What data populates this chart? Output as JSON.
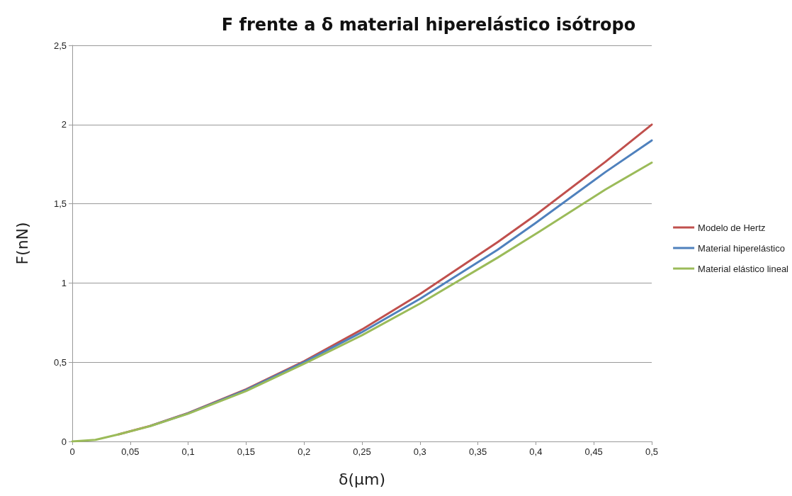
{
  "chart_data": {
    "type": "line",
    "title": "F frente a δ material hiperelástico isótropo",
    "xlabel": "δ(µm)",
    "ylabel": "F(nN)",
    "x": [
      0,
      0.02,
      0.04,
      0.067,
      0.1,
      0.15,
      0.2,
      0.25,
      0.3,
      0.367,
      0.4,
      0.46,
      0.5
    ],
    "series": [
      {
        "name": "Modelo de Hertz",
        "color": "#c0504d",
        "values": [
          null,
          null,
          0.045,
          0.098,
          0.179,
          0.329,
          0.506,
          0.707,
          0.93,
          1.258,
          1.43,
          1.765,
          2.0
        ]
      },
      {
        "name": "Material hiperelástico",
        "color": "#4f81bd",
        "values": [
          null,
          null,
          null,
          0.097,
          0.177,
          0.325,
          0.5,
          0.69,
          0.9,
          1.21,
          1.38,
          1.7,
          1.9
        ]
      },
      {
        "name": "Material elástico lineal",
        "color": "#9bbb59",
        "values": [
          0,
          0.01,
          0.045,
          0.096,
          0.175,
          0.318,
          0.49,
          0.67,
          0.87,
          1.16,
          1.31,
          1.59,
          1.76
        ]
      }
    ],
    "xlim": [
      0,
      0.5
    ],
    "ylim": [
      0,
      2.5
    ],
    "xticks": [
      0,
      {
        "value": 0.05,
        "label": "0,05"
      },
      {
        "value": 0.1,
        "label": "0,1"
      },
      {
        "value": 0.15,
        "label": "0,15"
      },
      {
        "value": 0.2,
        "label": "0,2"
      },
      {
        "value": 0.25,
        "label": "0,25"
      },
      {
        "value": 0.3,
        "label": "0,3"
      },
      {
        "value": 0.35,
        "label": "0,35"
      },
      {
        "value": 0.4,
        "label": "0,4"
      },
      {
        "value": 0.45,
        "label": "0,45"
      },
      {
        "value": 0.5,
        "label": "0,5"
      }
    ],
    "yticks": [
      0,
      {
        "value": 0.5,
        "label": "0,5"
      },
      1,
      {
        "value": 1.5,
        "label": "1,5"
      },
      2,
      {
        "value": 2.5,
        "label": "2,5"
      }
    ],
    "grid": "y",
    "legend": "right",
    "marker": "none",
    "line_style": "solid"
  }
}
